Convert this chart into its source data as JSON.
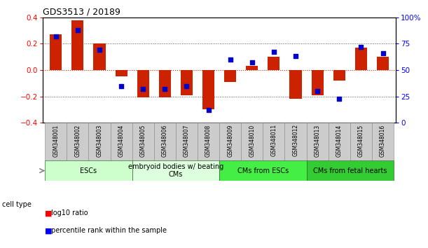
{
  "title": "GDS3513 / 20189",
  "samples": [
    "GSM348001",
    "GSM348002",
    "GSM348003",
    "GSM348004",
    "GSM348005",
    "GSM348006",
    "GSM348007",
    "GSM348008",
    "GSM348009",
    "GSM348010",
    "GSM348011",
    "GSM348012",
    "GSM348013",
    "GSM348014",
    "GSM348015",
    "GSM348016"
  ],
  "log10_ratio": [
    0.27,
    0.38,
    0.2,
    -0.05,
    -0.21,
    -0.21,
    -0.19,
    -0.3,
    -0.09,
    0.03,
    0.1,
    -0.22,
    -0.19,
    -0.08,
    0.17,
    0.1
  ],
  "percentile_rank": [
    82,
    88,
    69,
    35,
    32,
    32,
    35,
    12,
    60,
    57,
    67,
    63,
    30,
    23,
    72,
    66
  ],
  "cell_types": [
    {
      "label": "ESCs",
      "start": 0,
      "end": 3,
      "color": "#ccffcc"
    },
    {
      "label": "embryoid bodies w/ beating\nCMs",
      "start": 4,
      "end": 7,
      "color": "#ddffdd"
    },
    {
      "label": "CMs from ESCs",
      "start": 8,
      "end": 11,
      "color": "#44ee44"
    },
    {
      "label": "CMs from fetal hearts",
      "start": 12,
      "end": 15,
      "color": "#33cc33"
    }
  ],
  "ylim": [
    -0.4,
    0.4
  ],
  "y2lim": [
    0,
    100
  ],
  "yticks": [
    -0.4,
    -0.2,
    0,
    0.2,
    0.4
  ],
  "y2ticks": [
    0,
    25,
    50,
    75,
    100
  ],
  "bar_color": "#cc2200",
  "dot_color": "#0000cc",
  "bg_color": "#ffffff",
  "sample_box_color": "#cccccc",
  "bar_width": 0.55,
  "dot_size": 20,
  "title_fontsize": 9,
  "tick_fontsize": 7.5,
  "sample_fontsize": 5.5,
  "celltype_fontsize": 7
}
